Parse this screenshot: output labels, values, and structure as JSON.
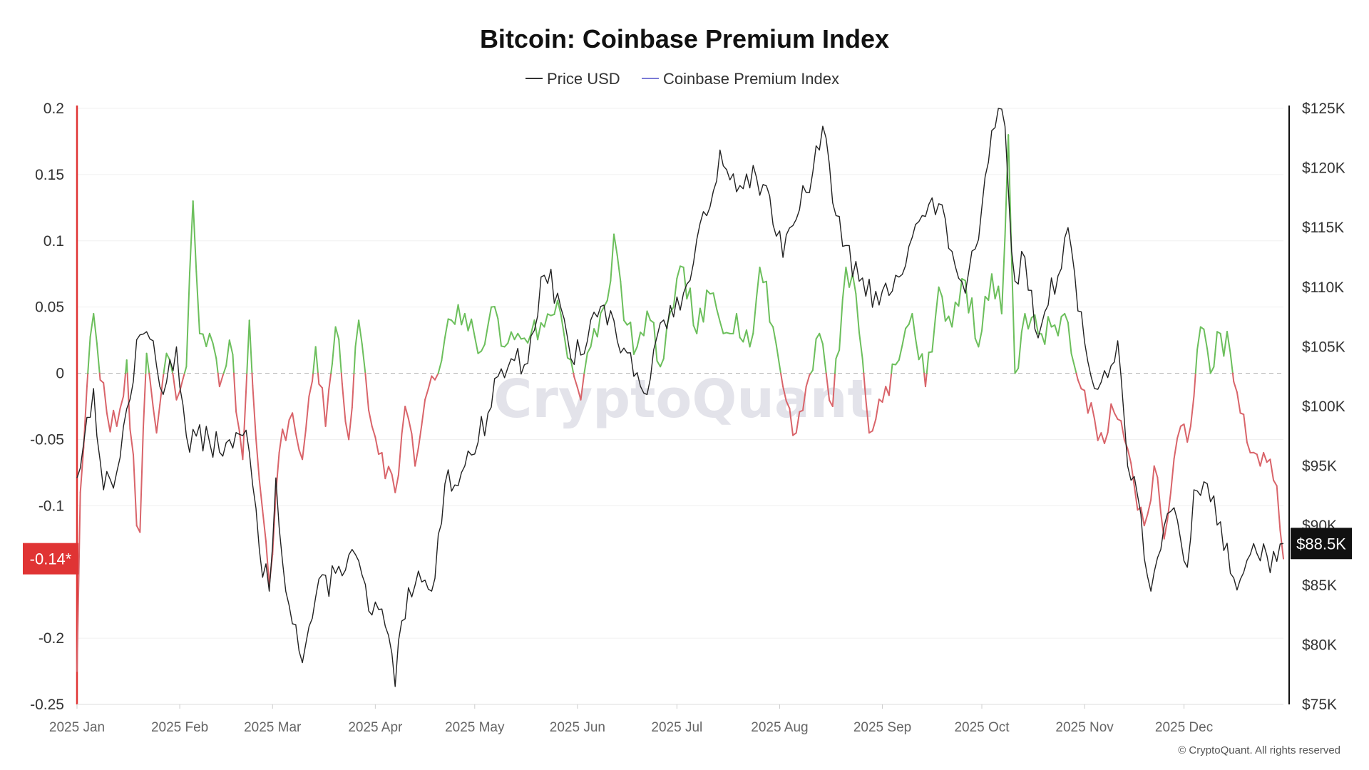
{
  "title": "Bitcoin: Coinbase Premium Index",
  "legend": [
    {
      "label": "Price USD",
      "color": "#333333"
    },
    {
      "label": "Coinbase Premium Index",
      "color": "#7b7bd6"
    }
  ],
  "watermark": "CryptoQuant",
  "copyright": "© CryptoQuant. All rights reserved",
  "colors": {
    "price_line": "#222222",
    "premium_positive": "#6cbf5c",
    "premium_negative": "#d9646a",
    "badge_red": "#e03434",
    "badge_black": "#111111"
  },
  "chart_data": {
    "type": "line",
    "title": "Bitcoin: Coinbase Premium Index",
    "x_ticks": [
      "2025 Jan",
      "2025 Feb",
      "2025 Mar",
      "2025 Apr",
      "2025 May",
      "2025 Jun",
      "2025 Jul",
      "2025 Aug",
      "2025 Sep",
      "2025 Oct",
      "2025 Nov",
      "2025 Dec"
    ],
    "y_left_ticks": [
      "0.2",
      "0.15",
      "0.1",
      "0.05",
      "0",
      "-0.05",
      "-0.1",
      "-0.2",
      "-0.25"
    ],
    "y_left_range": [
      -0.25,
      0.2
    ],
    "y_right_ticks": [
      "$125K",
      "$120K",
      "$115K",
      "$110K",
      "$105K",
      "$100K",
      "$95K",
      "$90K",
      "$85K",
      "$80K",
      "$75K"
    ],
    "y_right_range": [
      75000,
      125000
    ],
    "zero_line": "dashed",
    "legend_position": "top-center",
    "badges": {
      "premium_last": "-0.14*",
      "price_last": "$88.5K"
    },
    "series": [
      {
        "name": "Price USD",
        "axis": "right",
        "anchors": [
          [
            "2025-01-01",
            94000
          ],
          [
            "2025-01-06",
            101500
          ],
          [
            "2025-01-09",
            93000
          ],
          [
            "2025-01-13",
            94500
          ],
          [
            "2025-01-20",
            106000
          ],
          [
            "2025-01-24",
            105500
          ],
          [
            "2025-01-27",
            101000
          ],
          [
            "2025-01-31",
            105000
          ],
          [
            "2025-02-03",
            97500
          ],
          [
            "2025-02-10",
            97000
          ],
          [
            "2025-02-17",
            96500
          ],
          [
            "2025-02-21",
            98000
          ],
          [
            "2025-02-25",
            88000
          ],
          [
            "2025-02-28",
            84500
          ],
          [
            "2025-03-02",
            94000
          ],
          [
            "2025-03-04",
            87000
          ],
          [
            "2025-03-10",
            78500
          ],
          [
            "2025-03-14",
            84000
          ],
          [
            "2025-03-20",
            86000
          ],
          [
            "2025-03-25",
            88000
          ],
          [
            "2025-03-31",
            82500
          ],
          [
            "2025-04-03",
            83000
          ],
          [
            "2025-04-07",
            76500
          ],
          [
            "2025-04-09",
            82000
          ],
          [
            "2025-04-13",
            85000
          ],
          [
            "2025-04-18",
            84500
          ],
          [
            "2025-04-22",
            93500
          ],
          [
            "2025-04-28",
            95000
          ],
          [
            "2025-05-02",
            97000
          ],
          [
            "2025-05-08",
            102500
          ],
          [
            "2025-05-12",
            104000
          ],
          [
            "2025-05-16",
            103500
          ],
          [
            "2025-05-22",
            111000
          ],
          [
            "2025-05-26",
            109500
          ],
          [
            "2025-05-30",
            104000
          ],
          [
            "2025-06-04",
            105500
          ],
          [
            "2025-06-09",
            108500
          ],
          [
            "2025-06-13",
            105500
          ],
          [
            "2025-06-17",
            104500
          ],
          [
            "2025-06-22",
            101000
          ],
          [
            "2025-06-26",
            107000
          ],
          [
            "2025-06-30",
            107500
          ],
          [
            "2025-07-03",
            109500
          ],
          [
            "2025-07-10",
            116000
          ],
          [
            "2025-07-14",
            121500
          ],
          [
            "2025-07-17",
            119000
          ],
          [
            "2025-07-22",
            119500
          ],
          [
            "2025-07-28",
            118500
          ],
          [
            "2025-08-02",
            112500
          ],
          [
            "2025-08-07",
            116500
          ],
          [
            "2025-08-13",
            121500
          ],
          [
            "2025-08-14",
            123500
          ],
          [
            "2025-08-18",
            116000
          ],
          [
            "2025-08-21",
            113500
          ],
          [
            "2025-08-25",
            110500
          ],
          [
            "2025-08-31",
            108500
          ],
          [
            "2025-09-05",
            111000
          ],
          [
            "2025-09-12",
            115500
          ],
          [
            "2025-09-18",
            117000
          ],
          [
            "2025-09-22",
            113000
          ],
          [
            "2025-09-26",
            109500
          ],
          [
            "2025-09-30",
            114000
          ],
          [
            "2025-10-03",
            120500
          ],
          [
            "2025-10-06",
            125000
          ],
          [
            "2025-10-08",
            123500
          ],
          [
            "2025-10-10",
            113000
          ],
          [
            "2025-10-11",
            110500
          ],
          [
            "2025-10-14",
            112500
          ],
          [
            "2025-10-17",
            106500
          ],
          [
            "2025-10-21",
            108500
          ],
          [
            "2025-10-27",
            115000
          ],
          [
            "2025-10-30",
            108000
          ],
          [
            "2025-11-04",
            101500
          ],
          [
            "2025-11-07",
            103000
          ],
          [
            "2025-11-11",
            105500
          ],
          [
            "2025-11-14",
            95000
          ],
          [
            "2025-11-17",
            92500
          ],
          [
            "2025-11-21",
            84500
          ],
          [
            "2025-11-24",
            88000
          ],
          [
            "2025-11-28",
            91500
          ],
          [
            "2025-12-02",
            86500
          ],
          [
            "2025-12-04",
            93000
          ],
          [
            "2025-12-10",
            92500
          ],
          [
            "2025-12-15",
            86000
          ],
          [
            "2025-12-18",
            85500
          ],
          [
            "2025-12-22",
            88500
          ],
          [
            "2025-12-26",
            87500
          ],
          [
            "2025-12-29",
            87000
          ],
          [
            "2025-12-31",
            88500
          ]
        ]
      },
      {
        "name": "Coinbase Premium Index",
        "axis": "left",
        "anchors": [
          [
            "2025-01-01",
            -0.225
          ],
          [
            "2025-01-02",
            -0.09
          ],
          [
            "2025-01-04",
            -0.01
          ],
          [
            "2025-01-06",
            0.045
          ],
          [
            "2025-01-08",
            -0.005
          ],
          [
            "2025-01-10",
            -0.03
          ],
          [
            "2025-01-13",
            -0.04
          ],
          [
            "2025-01-16",
            0.01
          ],
          [
            "2025-01-19",
            -0.115
          ],
          [
            "2025-01-20",
            -0.12
          ],
          [
            "2025-01-22",
            0.015
          ],
          [
            "2025-01-25",
            -0.045
          ],
          [
            "2025-01-28",
            0.015
          ],
          [
            "2025-01-31",
            -0.02
          ],
          [
            "2025-02-03",
            0.005
          ],
          [
            "2025-02-05",
            0.13
          ],
          [
            "2025-02-07",
            0.03
          ],
          [
            "2025-02-10",
            0.03
          ],
          [
            "2025-02-13",
            -0.01
          ],
          [
            "2025-02-16",
            0.025
          ],
          [
            "2025-02-20",
            -0.065
          ],
          [
            "2025-02-22",
            0.04
          ],
          [
            "2025-02-25",
            -0.08
          ],
          [
            "2025-02-28",
            -0.16
          ],
          [
            "2025-03-03",
            -0.06
          ],
          [
            "2025-03-07",
            -0.03
          ],
          [
            "2025-03-10",
            -0.065
          ],
          [
            "2025-03-14",
            0.02
          ],
          [
            "2025-03-17",
            -0.04
          ],
          [
            "2025-03-20",
            0.035
          ],
          [
            "2025-03-24",
            -0.05
          ],
          [
            "2025-03-27",
            0.04
          ],
          [
            "2025-03-31",
            -0.04
          ],
          [
            "2025-04-03",
            -0.06
          ],
          [
            "2025-04-07",
            -0.09
          ],
          [
            "2025-04-10",
            -0.025
          ],
          [
            "2025-04-13",
            -0.07
          ],
          [
            "2025-04-16",
            -0.02
          ],
          [
            "2025-04-20",
            0.0
          ],
          [
            "2025-04-24",
            0.04
          ],
          [
            "2025-04-28",
            0.045
          ],
          [
            "2025-05-02",
            0.015
          ],
          [
            "2025-05-06",
            0.05
          ],
          [
            "2025-05-10",
            0.02
          ],
          [
            "2025-05-14",
            0.03
          ],
          [
            "2025-05-18",
            0.03
          ],
          [
            "2025-05-22",
            0.035
          ],
          [
            "2025-05-26",
            0.055
          ],
          [
            "2025-05-30",
            0.01
          ],
          [
            "2025-06-02",
            -0.02
          ],
          [
            "2025-06-05",
            0.02
          ],
          [
            "2025-06-10",
            0.055
          ],
          [
            "2025-06-12",
            0.105
          ],
          [
            "2025-06-15",
            0.04
          ],
          [
            "2025-06-19",
            0.02
          ],
          [
            "2025-06-23",
            0.04
          ],
          [
            "2025-06-26",
            0.005
          ],
          [
            "2025-06-30",
            0.05
          ],
          [
            "2025-07-03",
            0.08
          ],
          [
            "2025-07-07",
            0.03
          ],
          [
            "2025-07-11",
            0.06
          ],
          [
            "2025-07-15",
            0.03
          ],
          [
            "2025-07-19",
            0.045
          ],
          [
            "2025-07-23",
            0.02
          ],
          [
            "2025-07-26",
            0.08
          ],
          [
            "2025-07-30",
            0.035
          ],
          [
            "2025-08-02",
            -0.01
          ],
          [
            "2025-08-06",
            -0.045
          ],
          [
            "2025-08-09",
            -0.01
          ],
          [
            "2025-08-13",
            0.03
          ],
          [
            "2025-08-17",
            -0.025
          ],
          [
            "2025-08-21",
            0.08
          ],
          [
            "2025-08-24",
            0.06
          ],
          [
            "2025-08-28",
            -0.045
          ],
          [
            "2025-09-02",
            -0.01
          ],
          [
            "2025-09-06",
            0.01
          ],
          [
            "2025-09-10",
            0.045
          ],
          [
            "2025-09-14",
            -0.01
          ],
          [
            "2025-09-18",
            0.065
          ],
          [
            "2025-09-22",
            0.035
          ],
          [
            "2025-09-26",
            0.07
          ],
          [
            "2025-09-30",
            0.02
          ],
          [
            "2025-10-04",
            0.075
          ],
          [
            "2025-10-07",
            0.045
          ],
          [
            "2025-10-09",
            0.18
          ],
          [
            "2025-10-11",
            0.0
          ],
          [
            "2025-10-14",
            0.045
          ],
          [
            "2025-10-18",
            0.03
          ],
          [
            "2025-10-22",
            0.035
          ],
          [
            "2025-10-26",
            0.045
          ],
          [
            "2025-10-30",
            -0.005
          ],
          [
            "2025-11-02",
            -0.03
          ],
          [
            "2025-11-06",
            -0.045
          ],
          [
            "2025-11-10",
            -0.03
          ],
          [
            "2025-11-13",
            -0.05
          ],
          [
            "2025-11-16",
            -0.085
          ],
          [
            "2025-11-19",
            -0.115
          ],
          [
            "2025-11-22",
            -0.07
          ],
          [
            "2025-11-25",
            -0.125
          ],
          [
            "2025-11-27",
            -0.09
          ],
          [
            "2025-11-30",
            -0.04
          ],
          [
            "2025-12-03",
            -0.04
          ],
          [
            "2025-12-06",
            0.035
          ],
          [
            "2025-12-09",
            0.0
          ],
          [
            "2025-12-12",
            0.03
          ],
          [
            "2025-12-15",
            0.015
          ],
          [
            "2025-12-18",
            -0.03
          ],
          [
            "2025-12-21",
            -0.06
          ],
          [
            "2025-12-24",
            -0.07
          ],
          [
            "2025-12-27",
            -0.065
          ],
          [
            "2025-12-29",
            -0.085
          ],
          [
            "2025-12-31",
            -0.14
          ]
        ]
      }
    ]
  }
}
